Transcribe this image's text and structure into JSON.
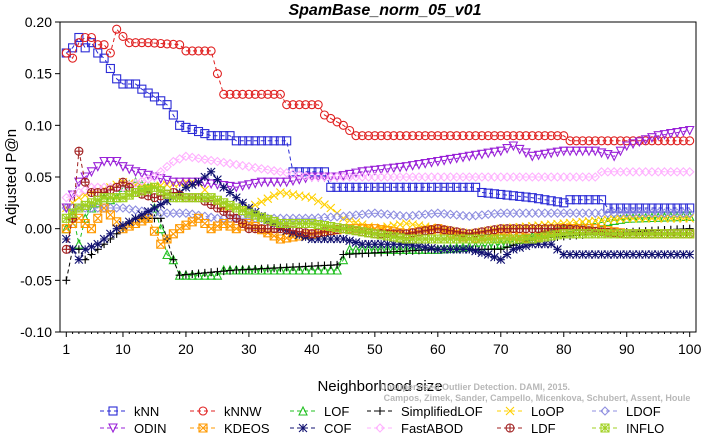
{
  "chart_data": {
    "type": "line",
    "title": "SpamBase_norm_05_v01",
    "xlabel": "Neighborhood size",
    "ylabel": "Adjusted P@n",
    "xlim": [
      0,
      101
    ],
    "ylim": [
      -0.1,
      0.2
    ],
    "x_ticks": [
      "1",
      "10",
      "20",
      "30",
      "40",
      "50",
      "60",
      "70",
      "80",
      "90",
      "100"
    ],
    "y_ticks": [
      "-0.10",
      "-0.05",
      "0.00",
      "0.05",
      "0.10",
      "0.15",
      "0.20"
    ],
    "grid": false,
    "legend_position": "bottom",
    "watermark": "Campos, Zimek, Sander, Campello, Micenkova, Schubert, Assent, Houle",
    "watermark_line1": "Unsupervised Outlier Detection. DAMI, 2015.",
    "series": [
      {
        "name": "kNN",
        "color": "#2b2bd6",
        "marker": "square",
        "dash": "4,3",
        "points": [
          [
            1,
            0.17
          ],
          [
            2,
            0.175
          ],
          [
            3,
            0.185
          ],
          [
            4,
            0.175
          ],
          [
            5,
            0.18
          ],
          [
            6,
            0.17
          ],
          [
            7,
            0.165
          ],
          [
            8,
            0.155
          ],
          [
            9,
            0.145
          ],
          [
            10,
            0.14
          ],
          [
            12,
            0.14
          ],
          [
            13,
            0.135
          ],
          [
            17,
            0.12
          ],
          [
            19,
            0.1
          ],
          [
            24,
            0.09
          ],
          [
            27,
            0.09
          ],
          [
            28,
            0.085
          ],
          [
            36,
            0.085
          ],
          [
            37,
            0.055
          ],
          [
            42,
            0.055
          ],
          [
            43,
            0.04
          ],
          [
            66,
            0.04
          ],
          [
            67,
            0.035
          ],
          [
            75,
            0.03
          ],
          [
            80,
            0.025
          ],
          [
            81,
            0.028
          ],
          [
            86,
            0.028
          ],
          [
            87,
            0.02
          ],
          [
            100,
            0.02
          ]
        ]
      },
      {
        "name": "kNNW",
        "color": "#e02020",
        "marker": "circle",
        "dash": "4,3",
        "points": [
          [
            1,
            0.17
          ],
          [
            2,
            0.165
          ],
          [
            3,
            0.18
          ],
          [
            4,
            0.185
          ],
          [
            5,
            0.185
          ],
          [
            6,
            0.178
          ],
          [
            7,
            0.178
          ],
          [
            8,
            0.17
          ],
          [
            9,
            0.193
          ],
          [
            10,
            0.186
          ],
          [
            11,
            0.18
          ],
          [
            14,
            0.18
          ],
          [
            19,
            0.178
          ],
          [
            20,
            0.172
          ],
          [
            24,
            0.172
          ],
          [
            25,
            0.15
          ],
          [
            26,
            0.13
          ],
          [
            35,
            0.13
          ],
          [
            36,
            0.12
          ],
          [
            41,
            0.12
          ],
          [
            42,
            0.11
          ],
          [
            45,
            0.1
          ],
          [
            47,
            0.09
          ],
          [
            80,
            0.09
          ],
          [
            81,
            0.085
          ],
          [
            100,
            0.085
          ]
        ]
      },
      {
        "name": "LOF",
        "color": "#22c022",
        "marker": "triangle-up",
        "dash": "4,3",
        "points": [
          [
            1,
            0.0
          ],
          [
            2,
            0.015
          ],
          [
            3,
            -0.015
          ],
          [
            4,
            0.01
          ],
          [
            5,
            0.02
          ],
          [
            6,
            0.025
          ],
          [
            7,
            0.03
          ],
          [
            8,
            0.028
          ],
          [
            9,
            0.03
          ],
          [
            10,
            0.04
          ],
          [
            12,
            0.045
          ],
          [
            14,
            0.04
          ],
          [
            16,
            0.0
          ],
          [
            17,
            -0.025
          ],
          [
            18,
            -0.03
          ],
          [
            19,
            -0.045
          ],
          [
            25,
            -0.045
          ],
          [
            26,
            -0.04
          ],
          [
            44,
            -0.04
          ],
          [
            45,
            -0.03
          ],
          [
            46,
            -0.02
          ],
          [
            60,
            -0.02
          ],
          [
            70,
            -0.015
          ],
          [
            80,
            -0.0
          ],
          [
            90,
            0.01
          ],
          [
            100,
            0.012
          ]
        ]
      },
      {
        "name": "SimplifiedLOF",
        "color": "#000000",
        "marker": "plus",
        "dash": "4,3",
        "points": [
          [
            1,
            -0.05
          ],
          [
            2,
            -0.02
          ],
          [
            3,
            -0.02
          ],
          [
            4,
            -0.03
          ],
          [
            5,
            -0.025
          ],
          [
            8,
            -0.01
          ],
          [
            10,
            0.0
          ],
          [
            12,
            0.01
          ],
          [
            14,
            0.01
          ],
          [
            16,
            0.01
          ],
          [
            18,
            -0.03
          ],
          [
            19,
            -0.045
          ],
          [
            28,
            -0.04
          ],
          [
            44,
            -0.035
          ],
          [
            45,
            -0.025
          ],
          [
            60,
            -0.02
          ],
          [
            70,
            -0.02
          ],
          [
            75,
            -0.01
          ],
          [
            85,
            -0.005
          ],
          [
            100,
            -0.0
          ]
        ]
      },
      {
        "name": "LoOP",
        "color": "#ffd000",
        "marker": "x",
        "dash": "4,3",
        "points": [
          [
            1,
            0.02
          ],
          [
            3,
            0.03
          ],
          [
            5,
            0.035
          ],
          [
            8,
            0.04
          ],
          [
            10,
            0.045
          ],
          [
            14,
            0.04
          ],
          [
            20,
            0.045
          ],
          [
            22,
            0.045
          ],
          [
            24,
            0.03
          ],
          [
            26,
            0.02
          ],
          [
            30,
            0.02
          ],
          [
            35,
            0.035
          ],
          [
            40,
            0.03
          ],
          [
            43,
            0.02
          ],
          [
            45,
            0.01
          ],
          [
            50,
            0.0
          ],
          [
            55,
            0.005
          ],
          [
            60,
            0.0
          ],
          [
            65,
            -0.005
          ],
          [
            70,
            0.0
          ],
          [
            80,
            0.005
          ],
          [
            90,
            0.01
          ],
          [
            100,
            0.01
          ]
        ]
      },
      {
        "name": "LDOF",
        "color": "#8f8fe0",
        "marker": "diamond",
        "dash": "4,3",
        "points": [
          [
            1,
            0.02
          ],
          [
            5,
            0.02
          ],
          [
            10,
            0.02
          ],
          [
            15,
            0.015
          ],
          [
            20,
            0.015
          ],
          [
            25,
            0.01
          ],
          [
            30,
            0.01
          ],
          [
            35,
            0.01
          ],
          [
            40,
            0.01
          ],
          [
            45,
            0.012
          ],
          [
            50,
            0.015
          ],
          [
            55,
            0.012
          ],
          [
            60,
            0.015
          ],
          [
            65,
            0.012
          ],
          [
            70,
            0.015
          ],
          [
            80,
            0.015
          ],
          [
            90,
            0.015
          ],
          [
            100,
            0.015
          ]
        ]
      },
      {
        "name": "ODIN",
        "color": "#9a22d8",
        "marker": "triangle-down",
        "dash": "4,3",
        "points": [
          [
            1,
            0.02
          ],
          [
            3,
            0.045
          ],
          [
            5,
            0.055
          ],
          [
            6,
            0.06
          ],
          [
            7,
            0.065
          ],
          [
            9,
            0.065
          ],
          [
            10,
            0.06
          ],
          [
            12,
            0.055
          ],
          [
            15,
            0.05
          ],
          [
            18,
            0.045
          ],
          [
            22,
            0.045
          ],
          [
            28,
            0.04
          ],
          [
            32,
            0.045
          ],
          [
            36,
            0.045
          ],
          [
            40,
            0.05
          ],
          [
            44,
            0.05
          ],
          [
            48,
            0.055
          ],
          [
            55,
            0.06
          ],
          [
            60,
            0.065
          ],
          [
            65,
            0.07
          ],
          [
            70,
            0.075
          ],
          [
            72,
            0.08
          ],
          [
            75,
            0.07
          ],
          [
            80,
            0.075
          ],
          [
            85,
            0.075
          ],
          [
            88,
            0.07
          ],
          [
            90,
            0.08
          ],
          [
            95,
            0.09
          ],
          [
            100,
            0.095
          ]
        ]
      },
      {
        "name": "KDEOS",
        "color": "#ff9900",
        "marker": "square-x",
        "dash": "4,3",
        "points": [
          [
            1,
            0.0
          ],
          [
            3,
            0.01
          ],
          [
            5,
            0.0
          ],
          [
            7,
            0.02
          ],
          [
            10,
            0.0
          ],
          [
            14,
            0.01
          ],
          [
            16,
            -0.015
          ],
          [
            19,
            0.0
          ],
          [
            22,
            0.01
          ],
          [
            24,
            0.0
          ],
          [
            26,
            0.005
          ],
          [
            28,
            0.0
          ],
          [
            30,
            0.005
          ],
          [
            35,
            -0.01
          ],
          [
            40,
            -0.005
          ],
          [
            45,
            0.0
          ],
          [
            50,
            0.0
          ],
          [
            55,
            -0.005
          ],
          [
            60,
            0.0
          ],
          [
            65,
            -0.01
          ],
          [
            70,
            -0.005
          ],
          [
            75,
            -0.01
          ],
          [
            80,
            0.0
          ],
          [
            85,
            0.0
          ],
          [
            90,
            -0.005
          ],
          [
            100,
            -0.005
          ]
        ]
      },
      {
        "name": "COF",
        "color": "#101070",
        "marker": "star",
        "dash": "4,3",
        "points": [
          [
            1,
            -0.01
          ],
          [
            2,
            -0.02
          ],
          [
            3,
            -0.03
          ],
          [
            4,
            -0.02
          ],
          [
            6,
            -0.015
          ],
          [
            9,
            0.0
          ],
          [
            12,
            0.01
          ],
          [
            15,
            0.02
          ],
          [
            18,
            0.03
          ],
          [
            20,
            0.04
          ],
          [
            22,
            0.045
          ],
          [
            24,
            0.055
          ],
          [
            26,
            0.04
          ],
          [
            30,
            0.02
          ],
          [
            35,
            0.0
          ],
          [
            40,
            -0.01
          ],
          [
            45,
            -0.01
          ],
          [
            48,
            -0.015
          ],
          [
            55,
            -0.015
          ],
          [
            60,
            -0.02
          ],
          [
            65,
            -0.02
          ],
          [
            68,
            -0.025
          ],
          [
            70,
            -0.03
          ],
          [
            72,
            -0.02
          ],
          [
            75,
            -0.015
          ],
          [
            78,
            -0.015
          ],
          [
            80,
            -0.025
          ],
          [
            100,
            -0.025
          ]
        ]
      },
      {
        "name": "FastABOD",
        "color": "#ffb0ff",
        "marker": "diamond",
        "dash": "4,3",
        "points": [
          [
            1,
            0.03
          ],
          [
            5,
            0.04
          ],
          [
            10,
            0.04
          ],
          [
            15,
            0.05
          ],
          [
            18,
            0.065
          ],
          [
            20,
            0.07
          ],
          [
            25,
            0.065
          ],
          [
            30,
            0.06
          ],
          [
            35,
            0.055
          ],
          [
            40,
            0.05
          ],
          [
            45,
            0.05
          ],
          [
            50,
            0.05
          ],
          [
            60,
            0.05
          ],
          [
            70,
            0.05
          ],
          [
            80,
            0.05
          ],
          [
            85,
            0.05
          ],
          [
            86,
            0.055
          ],
          [
            100,
            0.055
          ]
        ]
      },
      {
        "name": "LDF",
        "color": "#a02020",
        "marker": "circle-plus",
        "dash": "4,3",
        "points": [
          [
            1,
            -0.02
          ],
          [
            2,
            0.01
          ],
          [
            3,
            0.075
          ],
          [
            4,
            0.045
          ],
          [
            5,
            0.035
          ],
          [
            7,
            0.035
          ],
          [
            9,
            0.04
          ],
          [
            10,
            0.045
          ],
          [
            12,
            0.035
          ],
          [
            15,
            0.03
          ],
          [
            18,
            0.035
          ],
          [
            20,
            0.03
          ],
          [
            22,
            0.03
          ],
          [
            25,
            0.02
          ],
          [
            28,
            0.01
          ],
          [
            30,
            0.0
          ],
          [
            35,
            0.0
          ],
          [
            40,
            -0.005
          ],
          [
            45,
            0.0
          ],
          [
            50,
            -0.005
          ],
          [
            55,
            -0.005
          ],
          [
            60,
            0.0
          ],
          [
            65,
            -0.005
          ],
          [
            70,
            0.0
          ],
          [
            80,
            0.0
          ],
          [
            90,
            -0.005
          ],
          [
            100,
            -0.005
          ]
        ]
      },
      {
        "name": "INFLO",
        "color": "#a0d020",
        "marker": "star-box",
        "dash": "4,3",
        "points": [
          [
            1,
            0.01
          ],
          [
            3,
            0.02
          ],
          [
            5,
            0.025
          ],
          [
            7,
            0.03
          ],
          [
            10,
            0.03
          ],
          [
            12,
            0.035
          ],
          [
            15,
            0.04
          ],
          [
            18,
            0.03
          ],
          [
            20,
            0.03
          ],
          [
            24,
            0.03
          ],
          [
            28,
            0.02
          ],
          [
            30,
            0.015
          ],
          [
            35,
            0.005
          ],
          [
            40,
            0.005
          ],
          [
            45,
            0.0
          ],
          [
            50,
            -0.005
          ],
          [
            55,
            -0.01
          ],
          [
            60,
            -0.01
          ],
          [
            65,
            -0.01
          ],
          [
            70,
            -0.01
          ],
          [
            75,
            -0.01
          ],
          [
            80,
            -0.005
          ],
          [
            90,
            -0.005
          ],
          [
            100,
            -0.005
          ]
        ]
      }
    ]
  }
}
